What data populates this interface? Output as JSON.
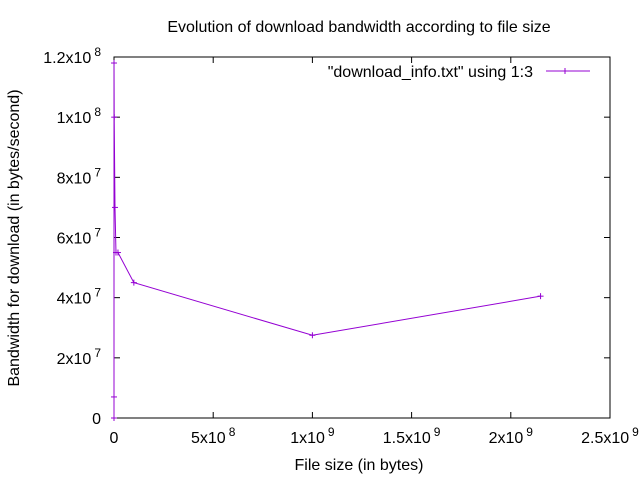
{
  "chart_data": {
    "type": "line",
    "title": "Evolution of download bandwidth according to file size",
    "xlabel": "File size (in bytes)",
    "ylabel": "Bandwidth for download (in bytes/second)",
    "xlim": [
      0,
      2500000000
    ],
    "ylim": [
      0,
      120000000
    ],
    "x_ticks": [
      {
        "value": 0,
        "base": "0",
        "exp": ""
      },
      {
        "value": 500000000,
        "base": "5x10",
        "exp": "8"
      },
      {
        "value": 1000000000,
        "base": "1x10",
        "exp": "9"
      },
      {
        "value": 1500000000,
        "base": "1.5x10",
        "exp": "9"
      },
      {
        "value": 2000000000,
        "base": "2x10",
        "exp": "9"
      },
      {
        "value": 2500000000,
        "base": "2.5x10",
        "exp": "9"
      }
    ],
    "y_ticks": [
      {
        "value": 0,
        "base": "0",
        "exp": ""
      },
      {
        "value": 20000000,
        "base": "2x10",
        "exp": "7"
      },
      {
        "value": 40000000,
        "base": "4x10",
        "exp": "7"
      },
      {
        "value": 60000000,
        "base": "6x10",
        "exp": "7"
      },
      {
        "value": 80000000,
        "base": "8x10",
        "exp": "7"
      },
      {
        "value": 100000000,
        "base": "1x10",
        "exp": "8"
      },
      {
        "value": 120000000,
        "base": "1.2x10",
        "exp": "8"
      }
    ],
    "grid": false,
    "legend_position": "top-right",
    "series": [
      {
        "name": "\"download_info.txt\" using 1:3",
        "color": "#9400d3",
        "marker": "plus",
        "points": [
          {
            "x": 1000,
            "y": 0
          },
          {
            "x": 10000,
            "y": 7000000
          },
          {
            "x": 100000,
            "y": 118000000
          },
          {
            "x": 1000000,
            "y": 100000000
          },
          {
            "x": 5000000,
            "y": 70000000
          },
          {
            "x": 10000000,
            "y": 55000000
          },
          {
            "x": 20000000,
            "y": 55000000
          },
          {
            "x": 100000000,
            "y": 45000000
          },
          {
            "x": 1000000000,
            "y": 27500000
          },
          {
            "x": 2150000000,
            "y": 40500000
          }
        ]
      }
    ]
  }
}
